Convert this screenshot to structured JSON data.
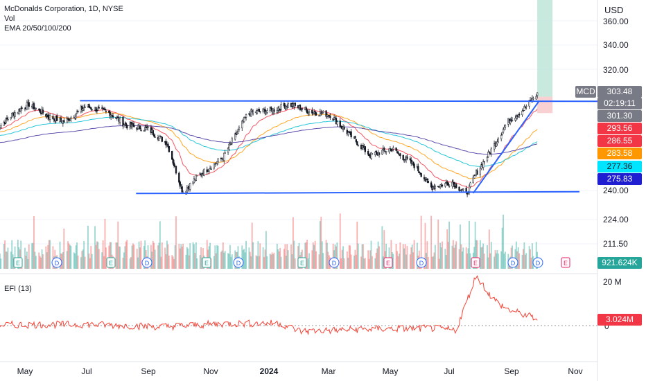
{
  "legend": {
    "symbol_line": "McDonalds Corporation, 1D, NYSE",
    "volume_line": "Vol",
    "ema_line": "EMA 20/50/100/200",
    "efi_line": "EFI (13)"
  },
  "price_scale": {
    "currency": "USD",
    "ticks": [
      "360.00",
      "340.00",
      "320.00",
      "240.00",
      "224.00",
      "211.50"
    ],
    "efi_ticks": [
      "20 M",
      "0"
    ]
  },
  "price_labels": {
    "symbol_tag": "MCD",
    "last_price": "303.48",
    "countdown": "02:19:11",
    "prev_close": "301.30",
    "ema20": "293.56",
    "ema50": "286.55",
    "ema100": "283.58",
    "ema200": "277.36",
    "level": "275.83",
    "volume": "921.624K",
    "efi": "3.024M"
  },
  "colors": {
    "up": "#26a69a",
    "down": "#ef5350",
    "trendline": "#2962ff",
    "ema20": "#f23645",
    "ema50": "#ff9800",
    "ema100": "#00bcd4",
    "ema200": "#3f2f9e",
    "efi": "#f44336",
    "target_zone": "#b9e3d6",
    "stop_zone": "#f8c5c8"
  },
  "event_markers": [
    {
      "type": "E"
    },
    {
      "type": "D"
    },
    {
      "type": "E"
    },
    {
      "type": "D"
    },
    {
      "type": "E"
    },
    {
      "type": "D"
    },
    {
      "type": "E"
    },
    {
      "type": "D"
    },
    {
      "type": "E"
    },
    {
      "type": "D"
    },
    {
      "type": "E"
    },
    {
      "type": "D"
    },
    {
      "type": "D"
    },
    {
      "type": "E"
    }
  ],
  "chart_data": {
    "type": "candlestick",
    "x_labels": [
      "May",
      "Jul",
      "Sep",
      "Nov",
      "2024",
      "Mar",
      "May",
      "Jul",
      "Sep",
      "Nov"
    ],
    "price_keypoints": [
      [
        "2023-04-01",
        282
      ],
      [
        "2023-04-20",
        292
      ],
      [
        "2023-05-05",
        297
      ],
      [
        "2023-05-25",
        290
      ],
      [
        "2023-06-10",
        287
      ],
      [
        "2023-07-01",
        296
      ],
      [
        "2023-07-25",
        292
      ],
      [
        "2023-08-10",
        285
      ],
      [
        "2023-09-01",
        283
      ],
      [
        "2023-09-20",
        275
      ],
      [
        "2023-10-06",
        247
      ],
      [
        "2023-10-20",
        256
      ],
      [
        "2023-11-15",
        267
      ],
      [
        "2023-12-10",
        292
      ],
      [
        "2024-01-05",
        294
      ],
      [
        "2024-01-20",
        297
      ],
      [
        "2024-02-10",
        293
      ],
      [
        "2024-03-01",
        291
      ],
      [
        "2024-03-20",
        280
      ],
      [
        "2024-04-10",
        268
      ],
      [
        "2024-05-01",
        272
      ],
      [
        "2024-05-25",
        262
      ],
      [
        "2024-06-10",
        250
      ],
      [
        "2024-07-01",
        253
      ],
      [
        "2024-07-15",
        246
      ],
      [
        "2024-07-25",
        258
      ],
      [
        "2024-08-10",
        272
      ],
      [
        "2024-08-25",
        287
      ],
      [
        "2024-09-10",
        294
      ],
      [
        "2024-09-24",
        303
      ]
    ],
    "last_price": 303.48,
    "ema": [
      {
        "name": "EMA 20",
        "value": 293.56
      },
      {
        "name": "EMA 50",
        "value": 286.55
      },
      {
        "name": "EMA 100",
        "value": 283.58
      },
      {
        "name": "EMA 200",
        "value": 277.36
      }
    ],
    "resistance": 299,
    "support": 246,
    "level": 275.83,
    "position": {
      "entry": 301.3,
      "target": 369,
      "stop": 292
    },
    "efi_keypoints": [
      [
        "2023-04-01",
        0.3
      ],
      [
        "2023-07-01",
        0.5
      ],
      [
        "2023-09-15",
        -0.5
      ],
      [
        "2023-11-15",
        0.8
      ],
      [
        "2024-01-10",
        1.0
      ],
      [
        "2024-02-01",
        -2.5
      ],
      [
        "2024-04-10",
        -1.5
      ],
      [
        "2024-06-10",
        -1.2
      ],
      [
        "2024-07-05",
        -2.0
      ],
      [
        "2024-07-25",
        22.0
      ],
      [
        "2024-08-10",
        12.0
      ],
      [
        "2024-08-25",
        7.0
      ],
      [
        "2024-09-24",
        3.0
      ]
    ],
    "efi_last": 3.024
  }
}
